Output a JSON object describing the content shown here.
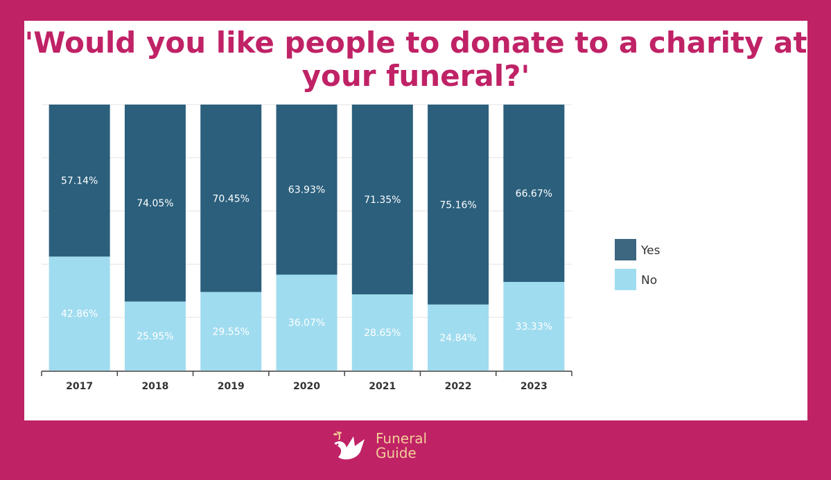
{
  "chart_data": {
    "type": "bar",
    "stacked": true,
    "title": "'Would you like people to donate to a charity at your funeral?'",
    "categories": [
      "2017",
      "2018",
      "2019",
      "2020",
      "2021",
      "2022",
      "2023"
    ],
    "series": [
      {
        "name": "Yes",
        "color": "#2b5f7c",
        "values": [
          57.14,
          74.05,
          70.45,
          63.93,
          71.35,
          75.16,
          66.67
        ],
        "labels": [
          "57.14%",
          "74.05%",
          "70.45%",
          "63.93%",
          "71.35%",
          "75.16%",
          "66.67%"
        ]
      },
      {
        "name": "No",
        "color": "#a0dcef",
        "values": [
          42.86,
          25.95,
          29.55,
          36.07,
          28.65,
          24.84,
          33.33
        ],
        "labels": [
          "42.86%",
          "25.95%",
          "29.55%",
          "36.07%",
          "28.65%",
          "24.84%",
          "33.33%"
        ]
      }
    ],
    "ylim": [
      0,
      100
    ],
    "grid": true,
    "legend": "right"
  },
  "brand": {
    "line1": "Funeral",
    "line2": "Guide",
    "logo_icon": "dove-icon",
    "text_color": "#f2cf97"
  }
}
